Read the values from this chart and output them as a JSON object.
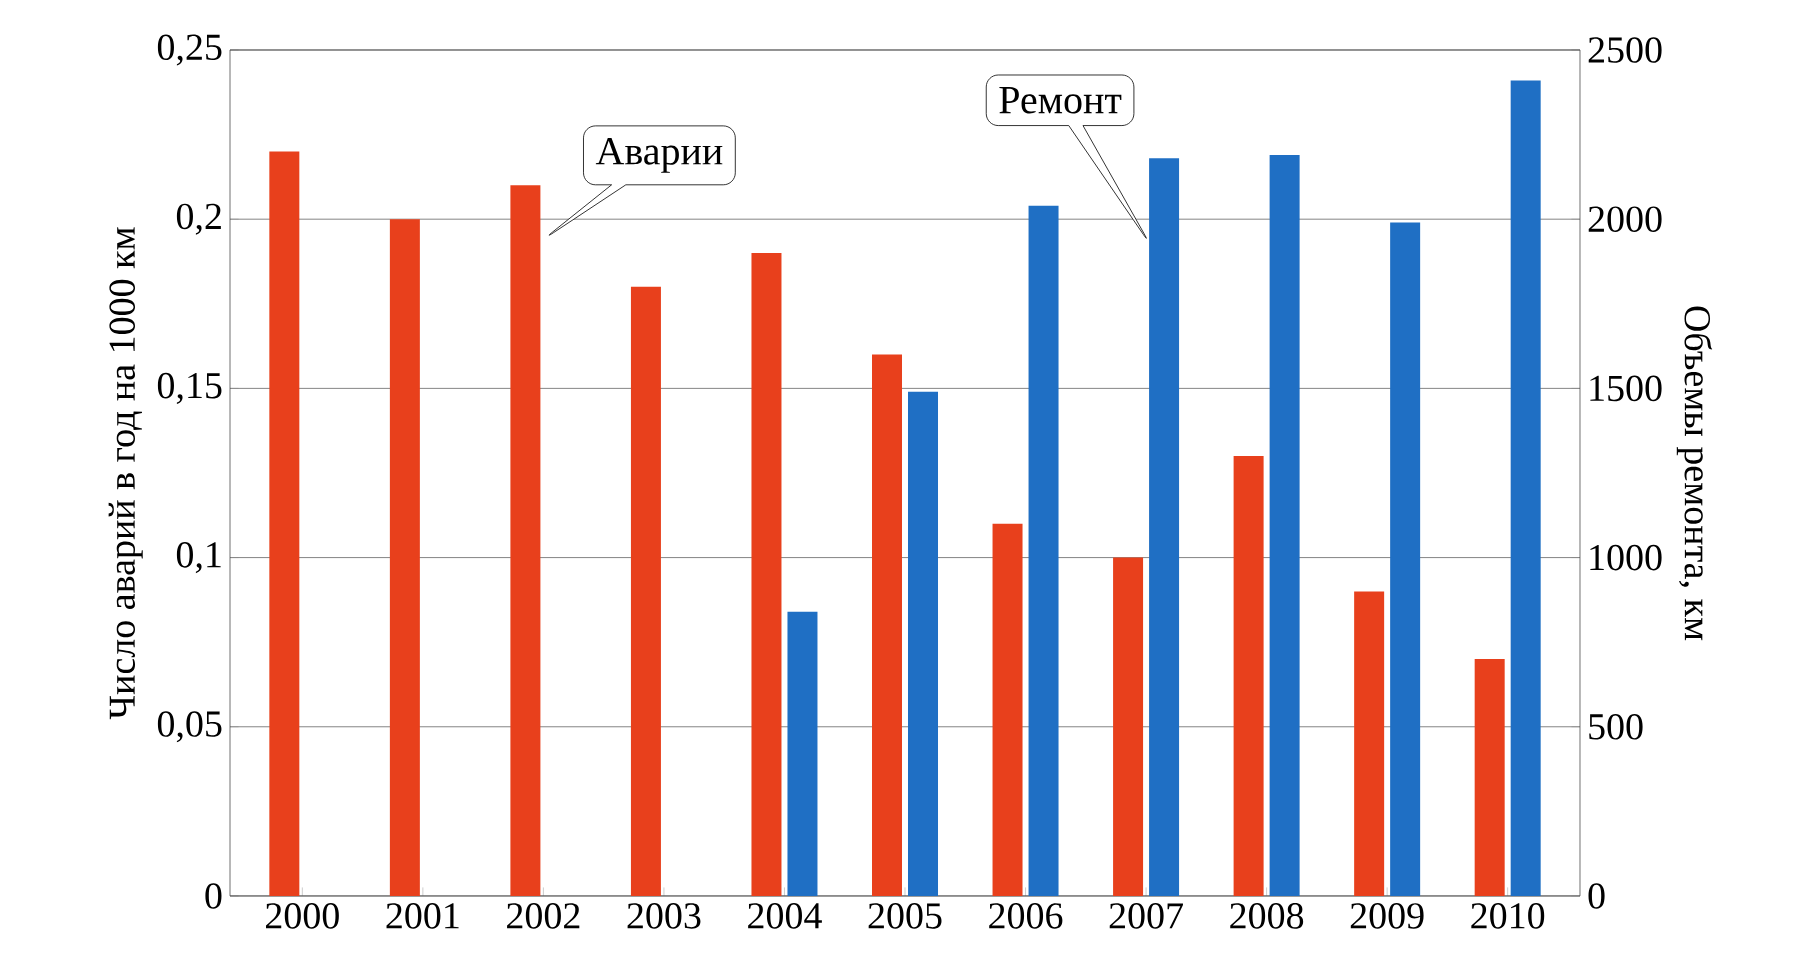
{
  "chart_data": {
    "type": "bar",
    "ylabel": "Число аварий в год на 1000 км",
    "y2label": "Объемы ремонта, км",
    "categories": [
      "2000",
      "2001",
      "2002",
      "2003",
      "2004",
      "2005",
      "2006",
      "2007",
      "2008",
      "2009",
      "2010"
    ],
    "series": [
      {
        "name": "Аварии",
        "color": "#e8401c",
        "values": [
          0.22,
          0.2,
          0.21,
          0.18,
          0.19,
          0.16,
          0.11,
          0.1,
          0.13,
          0.09,
          0.07
        ]
      },
      {
        "name": "Ремонт",
        "color": "#1f6fc4",
        "axis": "y2",
        "values": [
          null,
          null,
          null,
          null,
          840,
          1490,
          2040,
          2180,
          2190,
          1990,
          2410
        ]
      }
    ],
    "ylim": [
      0,
      0.25
    ],
    "yticks": [
      0,
      {
        "value": 0.05,
        "label": "0,05"
      },
      {
        "value": 0.1,
        "label": "0,1"
      },
      {
        "value": 0.15,
        "label": "0,15"
      },
      {
        "value": 0.2,
        "label": "0,2"
      },
      {
        "value": 0.25,
        "label": "0,25"
      }
    ],
    "y2lim": [
      0,
      2500
    ],
    "y2ticks": [
      0,
      500,
      1000,
      1500,
      2000,
      2500
    ],
    "grid": "y"
  }
}
